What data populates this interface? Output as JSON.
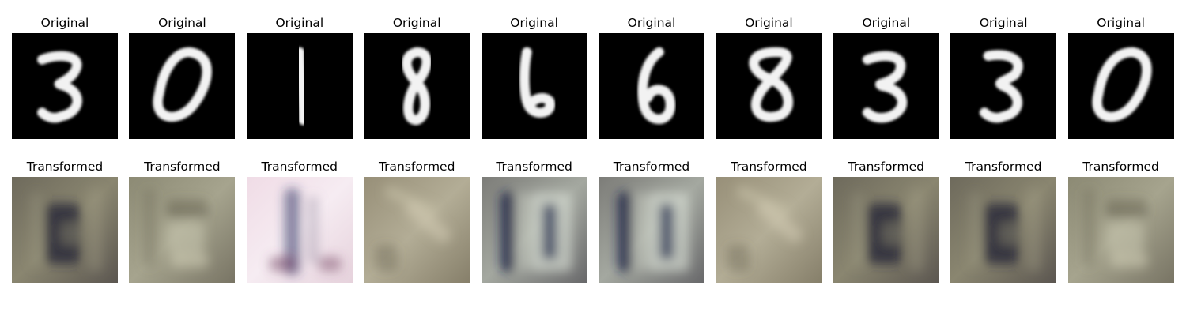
{
  "figure": {
    "original_title": "Original",
    "transformed_title": "Transformed",
    "columns": [
      {
        "original_digit": "3",
        "transformed_style": "dark-6"
      },
      {
        "original_digit": "0",
        "transformed_style": "faint-5"
      },
      {
        "original_digit": "1",
        "transformed_style": "pink-1"
      },
      {
        "original_digit": "8",
        "transformed_style": "diag-7"
      },
      {
        "original_digit": "6",
        "transformed_style": "bright-1E"
      },
      {
        "original_digit": "6",
        "transformed_style": "bright-1E"
      },
      {
        "original_digit": "8",
        "transformed_style": "diag-7"
      },
      {
        "original_digit": "3",
        "transformed_style": "dark-6"
      },
      {
        "original_digit": "3",
        "transformed_style": "dark-6"
      },
      {
        "original_digit": "0",
        "transformed_style": "faint-5"
      }
    ]
  },
  "colors": {
    "original_background": "#000000",
    "original_stroke": "#f2f2f2"
  }
}
